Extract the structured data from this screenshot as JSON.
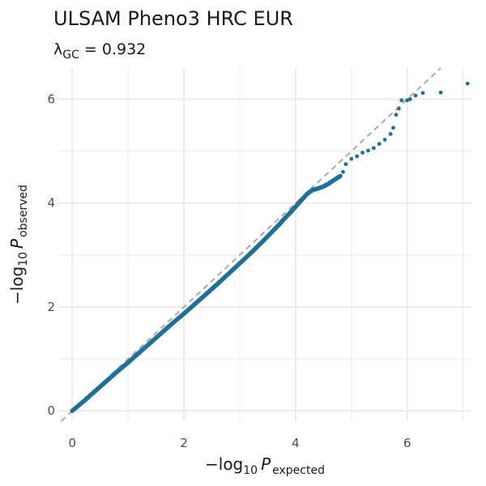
{
  "chart_data": {
    "type": "scatter",
    "title": "ULSAM Pheno3 HRC EUR",
    "subtitle": {
      "symbol": "λ",
      "subscript": "GC",
      "equals": " = ",
      "value": "0.932"
    },
    "xlabel": {
      "prefix": "−log",
      "base": "10",
      "variable": "P",
      "subscript": "expected"
    },
    "ylabel": {
      "prefix": "−log",
      "base": "10",
      "variable": "P",
      "subscript": "observed"
    },
    "xlim": [
      -0.25,
      7.15
    ],
    "ylim": [
      -0.2,
      6.6
    ],
    "x_ticks": [
      0,
      2,
      4,
      6
    ],
    "y_ticks": [
      0,
      2,
      4,
      6
    ],
    "x_tick_labels": [
      "0",
      "2",
      "4",
      "6"
    ],
    "y_tick_labels": [
      "0",
      "2",
      "4",
      "6"
    ],
    "grid": true,
    "reference_line": {
      "slope": 1,
      "intercept": 0,
      "style": "dashed",
      "color": "#aaaaaa"
    },
    "colors": {
      "points": "#1f6f98",
      "grid": "#ebebeb"
    },
    "series": [
      {
        "x": [
          0,
          0.2,
          0.4,
          0.6,
          0.8,
          1.0,
          1.2,
          1.4,
          1.6,
          1.8,
          2.0,
          2.2,
          2.4,
          2.6,
          2.8,
          3.0,
          3.2,
          3.4,
          3.5,
          3.6,
          3.7,
          3.8,
          3.9,
          4.0,
          4.1,
          4.2,
          4.3,
          4.4,
          4.5,
          4.6,
          4.7,
          4.8,
          4.85,
          4.9,
          5.0,
          5.1,
          5.2,
          5.3,
          5.4,
          5.5,
          5.6,
          5.7,
          5.75,
          5.8,
          5.85,
          5.9,
          6.0,
          6.05,
          6.15,
          6.28,
          6.6,
          7.08
        ],
        "y": [
          0,
          0.18,
          0.37,
          0.56,
          0.75,
          0.93,
          1.12,
          1.31,
          1.5,
          1.69,
          1.87,
          2.06,
          2.25,
          2.44,
          2.64,
          2.84,
          3.04,
          3.25,
          3.36,
          3.47,
          3.58,
          3.7,
          3.81,
          3.93,
          4.05,
          4.17,
          4.25,
          4.28,
          4.32,
          4.38,
          4.45,
          4.52,
          4.6,
          4.75,
          4.85,
          4.9,
          4.97,
          5.01,
          5.06,
          5.14,
          5.22,
          5.33,
          5.45,
          5.7,
          5.82,
          5.98,
          5.98,
          6.0,
          6.07,
          6.12,
          6.13,
          6.3
        ]
      }
    ]
  }
}
